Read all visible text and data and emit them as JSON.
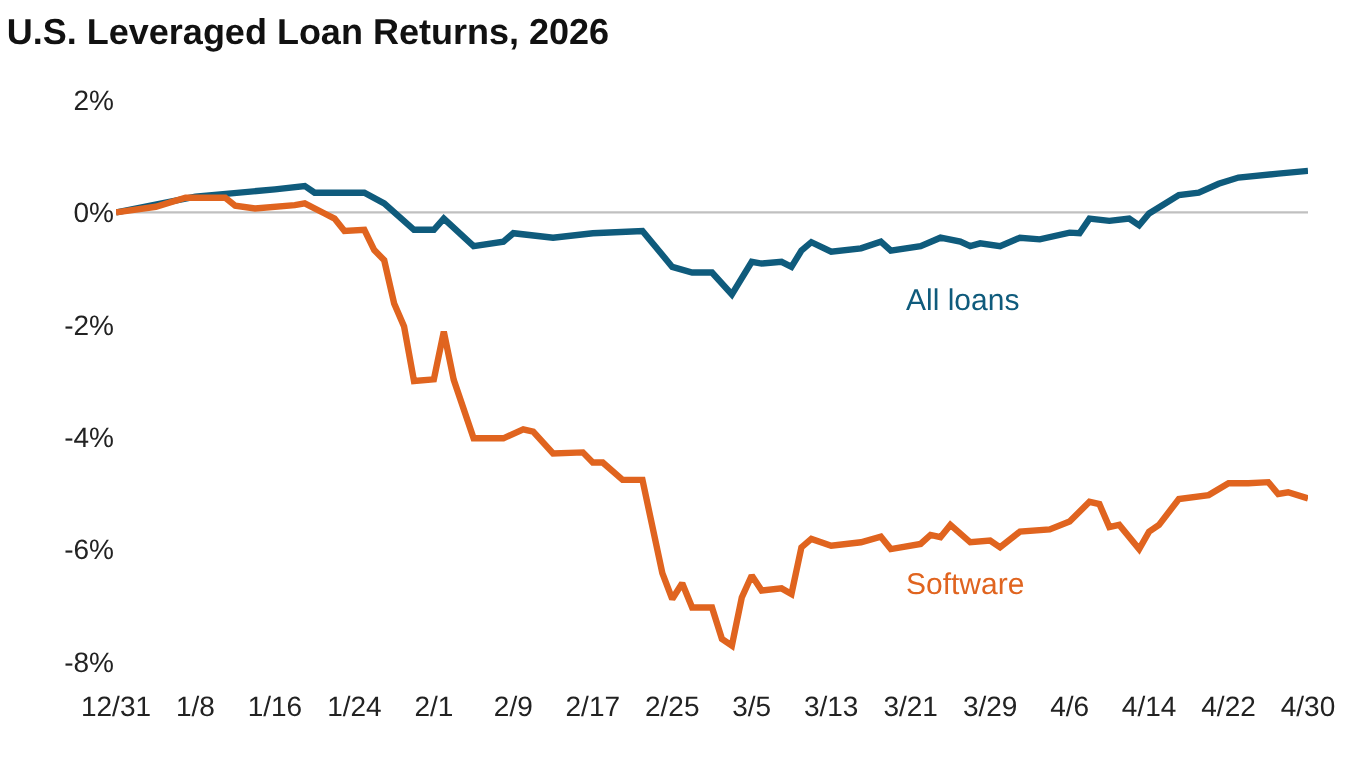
{
  "chart_data": {
    "type": "line",
    "title": "U.S. Leveraged Loan Returns, 2026",
    "xlim": [
      "2025-12-31",
      "2026-04-30"
    ],
    "xticks": [
      {
        "value": "2025-12-31",
        "label": "12/31"
      },
      {
        "value": "2026-01-08",
        "label": "1/8"
      },
      {
        "value": "2026-01-16",
        "label": "1/16"
      },
      {
        "value": "2026-01-24",
        "label": "1/24"
      },
      {
        "value": "2026-02-01",
        "label": "2/1"
      },
      {
        "value": "2026-02-09",
        "label": "2/9"
      },
      {
        "value": "2026-02-17",
        "label": "2/17"
      },
      {
        "value": "2026-02-25",
        "label": "2/25"
      },
      {
        "value": "2026-03-05",
        "label": "3/5"
      },
      {
        "value": "2026-03-13",
        "label": "3/13"
      },
      {
        "value": "2026-03-21",
        "label": "3/21"
      },
      {
        "value": "2026-03-29",
        "label": "3/29"
      },
      {
        "value": "2026-04-06",
        "label": "4/6"
      },
      {
        "value": "2026-04-14",
        "label": "4/14"
      },
      {
        "value": "2026-04-22",
        "label": "4/22"
      },
      {
        "value": "2026-04-30",
        "label": "4/30"
      }
    ],
    "ylim": [
      -8,
      2
    ],
    "yticks": [
      {
        "value": 2,
        "label": "2%"
      },
      {
        "value": 0,
        "label": "0%"
      },
      {
        "value": -2,
        "label": "-2%"
      },
      {
        "value": -4,
        "label": "-4%"
      },
      {
        "value": -6,
        "label": "-6%"
      },
      {
        "value": -8,
        "label": "-8%"
      }
    ],
    "grid": false,
    "legend": false,
    "marker": "none",
    "line_style": "solid",
    "ref_lines": [
      {
        "axis": "y",
        "value": 0,
        "label": null,
        "color": "#c0c0c0"
      }
    ],
    "series": [
      {
        "name": "All loans",
        "color": "#0f5b7c",
        "x": [
          "2025-12-31",
          "2026-01-08",
          "2026-01-16",
          "2026-01-19",
          "2026-01-20",
          "2026-01-25",
          "2026-01-27",
          "2026-01-30",
          "2026-02-01",
          "2026-02-02",
          "2026-02-05",
          "2026-02-08",
          "2026-02-09",
          "2026-02-13",
          "2026-02-17",
          "2026-02-22",
          "2026-02-25",
          "2026-02-27",
          "2026-03-01",
          "2026-03-03",
          "2026-03-05",
          "2026-03-06",
          "2026-03-08",
          "2026-03-09",
          "2026-03-10",
          "2026-03-11",
          "2026-03-13",
          "2026-03-16",
          "2026-03-18",
          "2026-03-19",
          "2026-03-22",
          "2026-03-24",
          "2026-03-26",
          "2026-03-27",
          "2026-03-28",
          "2026-03-30",
          "2026-04-01",
          "2026-04-03",
          "2026-04-06",
          "2026-04-07",
          "2026-04-08",
          "2026-04-10",
          "2026-04-12",
          "2026-04-13",
          "2026-04-14",
          "2026-04-17",
          "2026-04-19",
          "2026-04-21",
          "2026-04-23",
          "2026-04-27",
          "2026-04-30"
        ],
        "values": [
          0,
          0.28,
          0.41,
          0.47,
          0.35,
          0.35,
          0.16,
          -0.31,
          -0.31,
          -0.11,
          -0.6,
          -0.52,
          -0.37,
          -0.45,
          -0.37,
          -0.33,
          -0.97,
          -1.07,
          -1.07,
          -1.46,
          -0.88,
          -0.91,
          -0.88,
          -0.97,
          -0.68,
          -0.53,
          -0.7,
          -0.64,
          -0.52,
          -0.68,
          -0.6,
          -0.45,
          -0.52,
          -0.6,
          -0.55,
          -0.6,
          -0.45,
          -0.48,
          -0.36,
          -0.37,
          -0.11,
          -0.15,
          -0.11,
          -0.23,
          -0.02,
          0.31,
          0.35,
          0.51,
          0.62,
          0.69,
          0.74
        ]
      },
      {
        "name": "Software",
        "color": "#e0641f",
        "x": [
          "2025-12-31",
          "2026-01-04",
          "2026-01-07",
          "2026-01-11",
          "2026-01-12",
          "2026-01-14",
          "2026-01-18",
          "2026-01-19",
          "2026-01-21",
          "2026-01-22",
          "2026-01-23",
          "2026-01-25",
          "2026-01-26",
          "2026-01-27",
          "2026-01-28",
          "2026-01-29",
          "2026-01-30",
          "2026-02-01",
          "2026-02-02",
          "2026-02-03",
          "2026-02-05",
          "2026-02-08",
          "2026-02-10",
          "2026-02-11",
          "2026-02-13",
          "2026-02-16",
          "2026-02-17",
          "2026-02-18",
          "2026-02-20",
          "2026-02-22",
          "2026-02-24",
          "2026-02-25",
          "2026-02-26",
          "2026-02-27",
          "2026-03-01",
          "2026-03-02",
          "2026-03-03",
          "2026-03-04",
          "2026-03-05",
          "2026-03-06",
          "2026-03-08",
          "2026-03-09",
          "2026-03-10",
          "2026-03-11",
          "2026-03-13",
          "2026-03-16",
          "2026-03-18",
          "2026-03-19",
          "2026-03-22",
          "2026-03-23",
          "2026-03-24",
          "2026-03-25",
          "2026-03-27",
          "2026-03-29",
          "2026-03-30",
          "2026-04-01",
          "2026-04-04",
          "2026-04-06",
          "2026-04-08",
          "2026-04-09",
          "2026-04-10",
          "2026-04-11",
          "2026-04-13",
          "2026-04-14",
          "2026-04-15",
          "2026-04-17",
          "2026-04-20",
          "2026-04-22",
          "2026-04-24",
          "2026-04-26",
          "2026-04-27",
          "2026-04-28",
          "2026-04-30"
        ],
        "values": [
          0,
          0.1,
          0.26,
          0.26,
          0.12,
          0.07,
          0.13,
          0.16,
          -0.02,
          -0.11,
          -0.33,
          -0.31,
          -0.67,
          -0.85,
          -1.62,
          -2.03,
          -3.0,
          -2.97,
          -2.12,
          -2.98,
          -4.02,
          -4.02,
          -3.86,
          -3.9,
          -4.29,
          -4.27,
          -4.45,
          -4.45,
          -4.76,
          -4.76,
          -6.42,
          -6.88,
          -6.6,
          -7.03,
          -7.03,
          -7.59,
          -7.71,
          -6.85,
          -6.46,
          -6.73,
          -6.69,
          -6.79,
          -5.96,
          -5.81,
          -5.93,
          -5.87,
          -5.77,
          -5.99,
          -5.9,
          -5.74,
          -5.78,
          -5.56,
          -5.87,
          -5.84,
          -5.96,
          -5.68,
          -5.64,
          -5.5,
          -5.15,
          -5.19,
          -5.6,
          -5.56,
          -5.99,
          -5.68,
          -5.56,
          -5.1,
          -5.03,
          -4.82,
          -4.82,
          -4.8,
          -5.01,
          -4.98,
          -5.09
        ]
      }
    ]
  }
}
